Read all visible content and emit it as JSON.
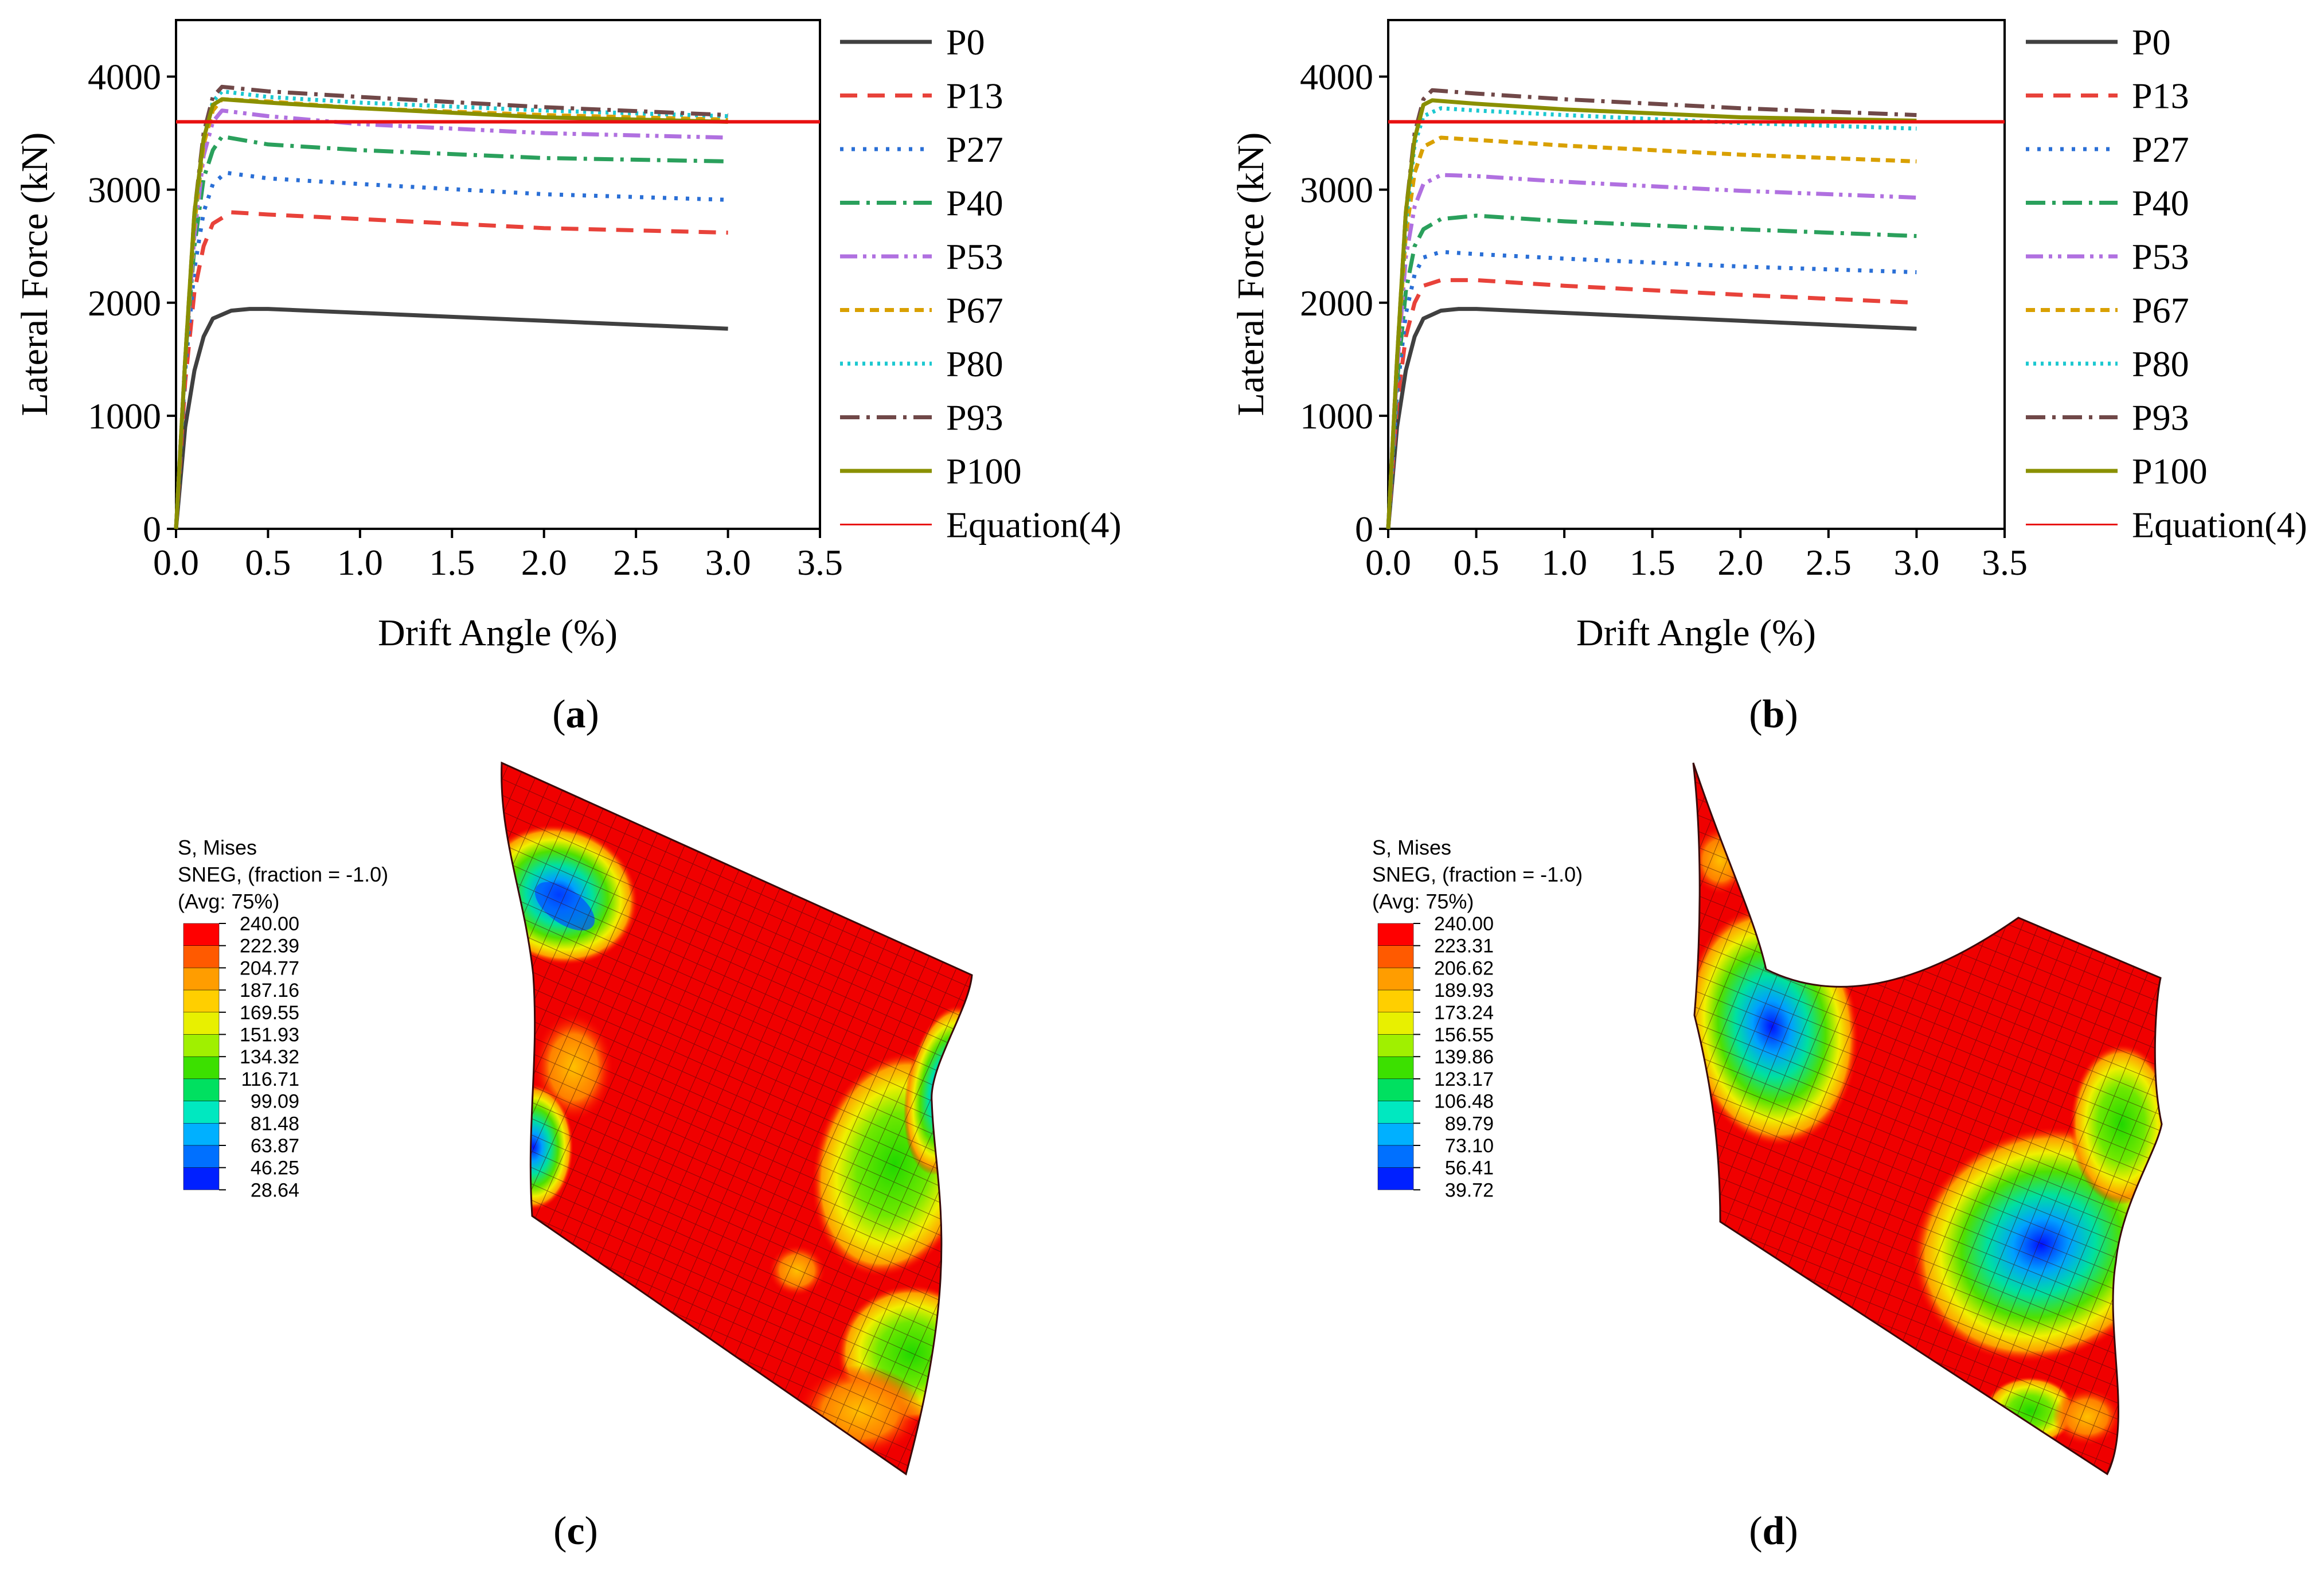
{
  "figure": {
    "captions": {
      "a": "a",
      "b": "b",
      "c": "c",
      "d": "d"
    }
  },
  "colors": {
    "P0": "#404040",
    "P13": "#e8423a",
    "P27": "#2a6fd6",
    "P40": "#2aa05c",
    "P53": "#b070e0",
    "P67": "#d9a000",
    "P80": "#1cc8d0",
    "P93": "#704848",
    "P100": "#8a9000",
    "Equation": "#e81010"
  },
  "chart_data": [
    {
      "panel": "a",
      "type": "line",
      "xlabel": "Drift Angle (%)",
      "ylabel": "Lateral Force (kN)",
      "xlim": [
        0,
        3.5
      ],
      "ylim": [
        0,
        4500
      ],
      "xticks": [
        "0.0",
        "0.5",
        "1.0",
        "1.5",
        "2.0",
        "2.5",
        "3.0",
        "3.5"
      ],
      "yticks": [
        "0",
        "1000",
        "2000",
        "3000",
        "4000"
      ],
      "legend": [
        "P0",
        "P13",
        "P27",
        "P40",
        "P53",
        "P67",
        "P80",
        "P93",
        "P100",
        "Equation(4)"
      ],
      "series": [
        {
          "name": "P0",
          "dash": "solid",
          "x": [
            0,
            0.05,
            0.1,
            0.15,
            0.2,
            0.3,
            0.4,
            0.5,
            1.0,
            2.0,
            3.0
          ],
          "y": [
            0,
            900,
            1400,
            1700,
            1860,
            1930,
            1945,
            1945,
            1910,
            1840,
            1770
          ]
        },
        {
          "name": "P13",
          "dash": "dash",
          "x": [
            0,
            0.05,
            0.1,
            0.15,
            0.2,
            0.3,
            0.5,
            1.0,
            2.0,
            3.0
          ],
          "y": [
            0,
            1300,
            2100,
            2500,
            2700,
            2800,
            2780,
            2740,
            2660,
            2620
          ]
        },
        {
          "name": "P27",
          "dash": "dot",
          "x": [
            0,
            0.05,
            0.1,
            0.15,
            0.2,
            0.27,
            0.5,
            1.0,
            2.0,
            3.0
          ],
          "y": [
            0,
            1400,
            2300,
            2800,
            3050,
            3150,
            3100,
            3050,
            2960,
            2910
          ]
        },
        {
          "name": "P40",
          "dash": "dashdot",
          "x": [
            0,
            0.05,
            0.1,
            0.15,
            0.2,
            0.25,
            0.5,
            1.0,
            2.0,
            3.0
          ],
          "y": [
            0,
            1500,
            2500,
            3100,
            3350,
            3470,
            3400,
            3350,
            3280,
            3250
          ]
        },
        {
          "name": "P53",
          "dash": "dashdotdot",
          "x": [
            0,
            0.05,
            0.1,
            0.15,
            0.2,
            0.25,
            0.5,
            1.0,
            2.0,
            3.0
          ],
          "y": [
            0,
            1500,
            2600,
            3300,
            3600,
            3700,
            3650,
            3580,
            3500,
            3460
          ]
        },
        {
          "name": "P67",
          "dash": "shortdash",
          "x": [
            0,
            0.05,
            0.1,
            0.15,
            0.2,
            0.25,
            0.5,
            1.0,
            2.0,
            3.0
          ],
          "y": [
            0,
            1500,
            2700,
            3400,
            3700,
            3800,
            3780,
            3720,
            3660,
            3620
          ]
        },
        {
          "name": "P80",
          "dash": "shortdot",
          "x": [
            0,
            0.05,
            0.1,
            0.15,
            0.2,
            0.25,
            0.5,
            1.0,
            2.0,
            3.0
          ],
          "y": [
            0,
            1500,
            2750,
            3450,
            3780,
            3870,
            3820,
            3770,
            3700,
            3650
          ]
        },
        {
          "name": "P93",
          "dash": "dashdot",
          "x": [
            0,
            0.05,
            0.1,
            0.15,
            0.2,
            0.25,
            0.5,
            1.0,
            2.0,
            3.0
          ],
          "y": [
            0,
            1500,
            2800,
            3500,
            3820,
            3910,
            3870,
            3820,
            3730,
            3660
          ]
        },
        {
          "name": "P100",
          "dash": "solid",
          "x": [
            0,
            0.05,
            0.1,
            0.15,
            0.2,
            0.25,
            0.5,
            1.0,
            2.0,
            3.0
          ],
          "y": [
            0,
            1500,
            2800,
            3450,
            3750,
            3800,
            3770,
            3720,
            3640,
            3600
          ]
        },
        {
          "name": "Equation(4)",
          "dash": "solid",
          "x": [
            0,
            3.5
          ],
          "y": [
            3600,
            3600
          ]
        }
      ]
    },
    {
      "panel": "b",
      "type": "line",
      "xlabel": "Drift Angle (%)",
      "ylabel": "Lateral Force (kN)",
      "xlim": [
        0,
        3.5
      ],
      "ylim": [
        0,
        4500
      ],
      "xticks": [
        "0.0",
        "0.5",
        "1.0",
        "1.5",
        "2.0",
        "2.5",
        "3.0",
        "3.5"
      ],
      "yticks": [
        "0",
        "1000",
        "2000",
        "3000",
        "4000"
      ],
      "legend": [
        "P0",
        "P13",
        "P27",
        "P40",
        "P53",
        "P67",
        "P80",
        "P93",
        "P100",
        "Equation(4)"
      ],
      "series": [
        {
          "name": "P0",
          "dash": "solid",
          "x": [
            0,
            0.05,
            0.1,
            0.15,
            0.2,
            0.3,
            0.4,
            0.5,
            1.0,
            2.0,
            3.0
          ],
          "y": [
            0,
            900,
            1400,
            1700,
            1860,
            1930,
            1945,
            1945,
            1910,
            1840,
            1770
          ]
        },
        {
          "name": "P13",
          "dash": "dash",
          "x": [
            0,
            0.05,
            0.1,
            0.15,
            0.2,
            0.3,
            0.5,
            1.0,
            2.0,
            3.0
          ],
          "y": [
            0,
            1100,
            1700,
            2000,
            2150,
            2200,
            2200,
            2150,
            2070,
            2000
          ]
        },
        {
          "name": "P27",
          "dash": "dot",
          "x": [
            0,
            0.05,
            0.1,
            0.15,
            0.2,
            0.3,
            0.5,
            1.0,
            2.0,
            3.0
          ],
          "y": [
            0,
            1200,
            1900,
            2250,
            2400,
            2450,
            2430,
            2390,
            2320,
            2270
          ]
        },
        {
          "name": "P40",
          "dash": "dashdot",
          "x": [
            0,
            0.05,
            0.1,
            0.15,
            0.2,
            0.3,
            0.5,
            1.0,
            2.0,
            3.0
          ],
          "y": [
            0,
            1300,
            2100,
            2500,
            2650,
            2740,
            2770,
            2720,
            2650,
            2590
          ]
        },
        {
          "name": "P53",
          "dash": "dashdotdot",
          "x": [
            0,
            0.05,
            0.1,
            0.15,
            0.2,
            0.3,
            0.5,
            1.0,
            2.0,
            3.0
          ],
          "y": [
            0,
            1400,
            2400,
            2850,
            3050,
            3130,
            3120,
            3070,
            2990,
            2930
          ]
        },
        {
          "name": "P67",
          "dash": "shortdash",
          "x": [
            0,
            0.05,
            0.1,
            0.15,
            0.2,
            0.3,
            0.5,
            1.0,
            2.0,
            3.0
          ],
          "y": [
            0,
            1500,
            2600,
            3150,
            3380,
            3460,
            3440,
            3390,
            3310,
            3250
          ]
        },
        {
          "name": "P80",
          "dash": "shortdot",
          "x": [
            0,
            0.05,
            0.1,
            0.15,
            0.2,
            0.3,
            0.5,
            1.0,
            2.0,
            3.0
          ],
          "y": [
            0,
            1500,
            2700,
            3400,
            3650,
            3720,
            3700,
            3660,
            3590,
            3540
          ]
        },
        {
          "name": "P93",
          "dash": "dashdot",
          "x": [
            0,
            0.05,
            0.1,
            0.15,
            0.2,
            0.25,
            0.5,
            1.0,
            2.0,
            3.0
          ],
          "y": [
            0,
            1500,
            2800,
            3500,
            3800,
            3880,
            3850,
            3800,
            3720,
            3660
          ]
        },
        {
          "name": "P100",
          "dash": "solid",
          "x": [
            0,
            0.05,
            0.1,
            0.15,
            0.2,
            0.25,
            0.5,
            1.0,
            2.0,
            3.0
          ],
          "y": [
            0,
            1500,
            2800,
            3450,
            3750,
            3790,
            3760,
            3710,
            3640,
            3610
          ]
        },
        {
          "name": "Equation(4)",
          "dash": "solid",
          "x": [
            0,
            3.5
          ],
          "y": [
            3600,
            3600
          ]
        }
      ]
    }
  ],
  "contour_c": {
    "title_lines": [
      "S, Mises",
      "SNEG, (fraction = -1.0)",
      "(Avg: 75%)"
    ],
    "levels": [
      "240.00",
      "222.39",
      "204.77",
      "187.16",
      "169.55",
      "151.93",
      "134.32",
      "116.71",
      "99.09",
      "81.48",
      "63.87",
      "46.25",
      "28.64"
    ],
    "swatch_colors": [
      "#ff0000",
      "#ff5a00",
      "#ff9d00",
      "#ffcf00",
      "#e8f000",
      "#a0f000",
      "#3ce000",
      "#00e060",
      "#00e8c0",
      "#00b0ff",
      "#0070ff",
      "#0020ff"
    ]
  },
  "contour_d": {
    "title_lines": [
      "S, Mises",
      "SNEG, (fraction = -1.0)",
      "(Avg: 75%)"
    ],
    "levels": [
      "240.00",
      "223.31",
      "206.62",
      "189.93",
      "173.24",
      "156.55",
      "139.86",
      "123.17",
      "106.48",
      "89.79",
      "73.10",
      "56.41",
      "39.72"
    ],
    "swatch_colors": [
      "#ff0000",
      "#ff5a00",
      "#ff9d00",
      "#ffcf00",
      "#e8f000",
      "#a0f000",
      "#3ce000",
      "#00e060",
      "#00e8c0",
      "#00b0ff",
      "#0070ff",
      "#0020ff"
    ]
  }
}
